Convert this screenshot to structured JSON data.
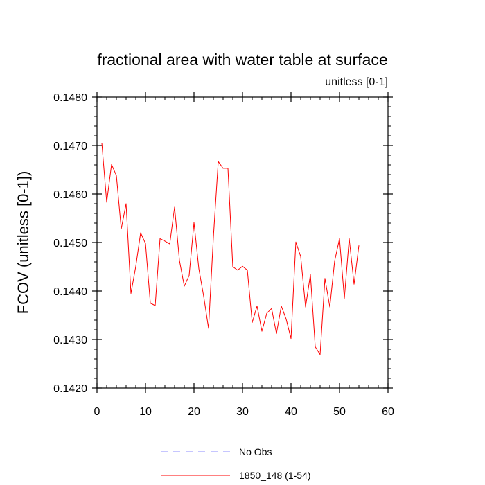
{
  "chart_data": {
    "type": "line",
    "title": "fractional area with water table at surface",
    "units_label": "unitless [0-1]",
    "ylabel": "FCOV  (unitless [0-1])",
    "xlabel": "",
    "xlim": [
      0,
      60
    ],
    "ylim": [
      0.142,
      0.148
    ],
    "x_ticks": [
      0,
      10,
      20,
      30,
      40,
      50,
      60
    ],
    "x_tick_labels": [
      "0",
      "10",
      "20",
      "30",
      "40",
      "50",
      "60"
    ],
    "y_ticks": [
      0.142,
      0.143,
      0.144,
      0.145,
      0.146,
      0.147,
      0.148
    ],
    "y_tick_labels": [
      "0.1420",
      "0.1430",
      "0.1440",
      "0.1450",
      "0.1460",
      "0.1470",
      "0.1480"
    ],
    "grid": false,
    "legend_placement": "bottom-center",
    "legend": [
      {
        "label": "No Obs",
        "color": "#8c8cff",
        "style": "dashed"
      },
      {
        "label": "1850_148 (1-54)",
        "color": "#ff0000",
        "style": "solid"
      }
    ],
    "series": [
      {
        "name": "1850_148 (1-54)",
        "color": "#ff0000",
        "x": [
          1,
          2,
          3,
          4,
          5,
          6,
          7,
          8,
          9,
          10,
          11,
          12,
          13,
          14,
          15,
          16,
          17,
          18,
          19,
          20,
          21,
          22,
          23,
          24,
          25,
          26,
          27,
          28,
          29,
          30,
          31,
          32,
          33,
          34,
          35,
          36,
          37,
          38,
          39,
          40,
          41,
          42,
          43,
          44,
          45,
          46,
          47,
          48,
          49,
          50,
          51,
          52,
          53,
          54
        ],
        "y": [
          0.14705,
          0.14583,
          0.14661,
          0.14638,
          0.14528,
          0.1458,
          0.14395,
          0.14451,
          0.1452,
          0.14498,
          0.14375,
          0.1437,
          0.14508,
          0.14503,
          0.14497,
          0.14573,
          0.14463,
          0.1441,
          0.14432,
          0.14541,
          0.14446,
          0.14389,
          0.14323,
          0.14511,
          0.14667,
          0.14653,
          0.14653,
          0.1445,
          0.14443,
          0.14451,
          0.14443,
          0.14335,
          0.14369,
          0.14317,
          0.14354,
          0.14364,
          0.14312,
          0.14369,
          0.14342,
          0.14302,
          0.14501,
          0.14471,
          0.14367,
          0.14434,
          0.14285,
          0.14269,
          0.14426,
          0.14367,
          0.14462,
          0.14508,
          0.14385,
          0.14508,
          0.14414,
          0.14494
        ]
      }
    ]
  }
}
